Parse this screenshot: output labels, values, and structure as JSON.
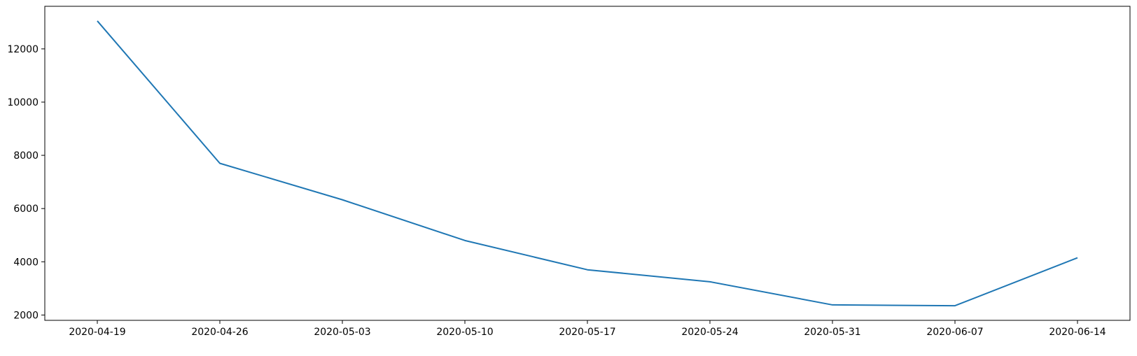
{
  "chart_data": {
    "type": "line",
    "title": "",
    "xlabel": "",
    "ylabel": "",
    "x": [
      "2020-04-19",
      "2020-04-26",
      "2020-05-03",
      "2020-05-10",
      "2020-05-17",
      "2020-05-24",
      "2020-05-31",
      "2020-06-07",
      "2020-06-14"
    ],
    "series": [
      {
        "values": [
          13050,
          7700,
          6330,
          4800,
          3700,
          3250,
          2380,
          2350,
          4150
        ],
        "color": "#1f77b4"
      }
    ],
    "xticks": [
      "2020-04-19",
      "2020-04-26",
      "2020-05-03",
      "2020-05-10",
      "2020-05-17",
      "2020-05-24",
      "2020-05-31",
      "2020-06-07",
      "2020-06-14"
    ],
    "yticks": [
      2000,
      4000,
      6000,
      8000,
      10000,
      12000
    ],
    "xlim": [
      "2020-04-16",
      "2020-06-17"
    ],
    "ylim": [
      1800,
      13600
    ],
    "grid": false,
    "legend": "none"
  }
}
